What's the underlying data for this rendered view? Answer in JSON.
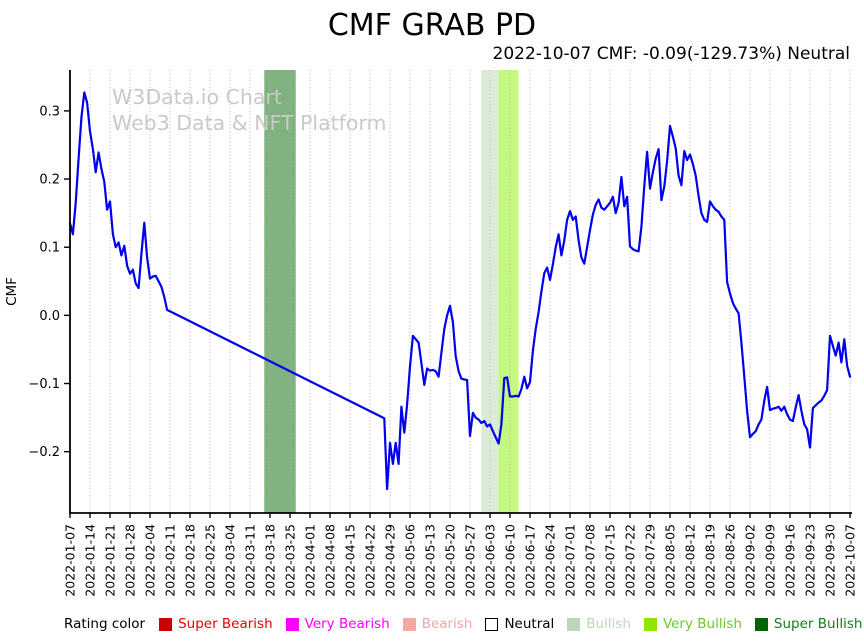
{
  "header": {
    "title": "CMF GRAB PD",
    "subtitle": "2022-10-07 CMF: -0.09(-129.73%) Neutral"
  },
  "watermark": {
    "line1": "W3Data.io Chart",
    "line2": "Web3 Data & NFT Platform",
    "color": "#c9c9c9"
  },
  "legend": {
    "title": "Rating color",
    "items": [
      {
        "label": "Super Bearish",
        "swatch": "#cc0000",
        "text": "#e60000",
        "border": "#cc0000"
      },
      {
        "label": "Very Bearish",
        "swatch": "#ff00ff",
        "text": "#ff00ff",
        "border": "#ff00ff"
      },
      {
        "label": "Bearish",
        "swatch": "#f4a7a3",
        "text": "#f4a7a3",
        "border": "#f4a7a3"
      },
      {
        "label": "Neutral",
        "swatch": "#ffffff",
        "text": "#000000",
        "border": "#000000"
      },
      {
        "label": "Bullish",
        "swatch": "#bcd6bc",
        "text": "#bcd6bc",
        "border": "#bcd6bc"
      },
      {
        "label": "Very Bullish",
        "swatch": "#8ce600",
        "text": "#6cc832",
        "border": "#8ce600"
      },
      {
        "label": "Super Bullish",
        "swatch": "#006400",
        "text": "#1a7a1a",
        "border": "#006400"
      }
    ]
  },
  "chart_data": {
    "type": "line",
    "title": "CMF GRAB PD",
    "subtitle": "2022-10-07 CMF: -0.09(-129.73%) Neutral",
    "xlabel": "",
    "ylabel": "CMF",
    "grid": "vertical-dotted",
    "grid_color": "#b3b3b3",
    "axis_color": "#000000",
    "line_color": "#0000ee",
    "line_width": 2.2,
    "x_start_date": "2022-01-07",
    "x_end_date": "2022-10-07",
    "x_range_days": 273,
    "x_unit": "days since 2022-01-07",
    "ylim": [
      -0.29,
      0.36
    ],
    "yticks": [
      {
        "label": "0.3",
        "value": 0.3
      },
      {
        "label": "0.2",
        "value": 0.2
      },
      {
        "label": "0.1",
        "value": 0.1
      },
      {
        "label": "0.0",
        "value": 0.0
      },
      {
        "label": "−0.1",
        "value": -0.1
      },
      {
        "label": "−0.2",
        "value": -0.2
      }
    ],
    "xtick_dates": [
      "2022-01-07",
      "2022-01-14",
      "2022-01-21",
      "2022-01-28",
      "2022-02-04",
      "2022-02-11",
      "2022-02-18",
      "2022-02-25",
      "2022-03-04",
      "2022-03-11",
      "2022-03-18",
      "2022-03-25",
      "2022-04-01",
      "2022-04-08",
      "2022-04-15",
      "2022-04-22",
      "2022-04-29",
      "2022-05-06",
      "2022-05-13",
      "2022-05-20",
      "2022-05-27",
      "2022-06-03",
      "2022-06-10",
      "2022-06-17",
      "2022-06-24",
      "2022-07-01",
      "2022-07-08",
      "2022-07-15",
      "2022-07-22",
      "2022-07-29",
      "2022-08-05",
      "2022-08-12",
      "2022-08-19",
      "2022-08-26",
      "2022-09-02",
      "2022-09-09",
      "2022-09-16",
      "2022-09-23",
      "2022-09-30",
      "2022-10-07"
    ],
    "bands": [
      {
        "label": "Super Bullish",
        "start": "2022-03-16",
        "end": "2022-03-27",
        "fill": "#80b280"
      },
      {
        "label": "Bullish",
        "start": "2022-05-31",
        "end": "2022-06-06",
        "fill": "#dcead8"
      },
      {
        "label": "Very Bullish",
        "start": "2022-06-06",
        "end": "2022-06-13",
        "fill": "#c4f87e"
      }
    ],
    "gap_note": "straight segment = interpolated gap between day 34 (2022-02-10) and day 110 (2022-04-27)",
    "series": [
      {
        "name": "CMF",
        "points": [
          [
            0,
            0.135
          ],
          [
            1,
            0.119
          ],
          [
            2,
            0.165
          ],
          [
            3,
            0.23
          ],
          [
            4,
            0.29
          ],
          [
            5,
            0.327
          ],
          [
            6,
            0.312
          ],
          [
            7,
            0.27
          ],
          [
            8,
            0.244
          ],
          [
            9,
            0.21
          ],
          [
            10,
            0.239
          ],
          [
            11,
            0.215
          ],
          [
            12,
            0.196
          ],
          [
            13,
            0.155
          ],
          [
            14,
            0.167
          ],
          [
            15,
            0.119
          ],
          [
            16,
            0.1
          ],
          [
            17,
            0.107
          ],
          [
            18,
            0.088
          ],
          [
            19,
            0.102
          ],
          [
            20,
            0.073
          ],
          [
            21,
            0.061
          ],
          [
            22,
            0.067
          ],
          [
            23,
            0.047
          ],
          [
            24,
            0.04
          ],
          [
            25,
            0.09
          ],
          [
            26,
            0.136
          ],
          [
            27,
            0.085
          ],
          [
            28,
            0.054
          ],
          [
            29,
            0.057
          ],
          [
            30,
            0.058
          ],
          [
            31,
            0.05
          ],
          [
            32,
            0.042
          ],
          [
            33,
            0.027
          ],
          [
            34,
            0.008
          ],
          [
            110,
            -0.151
          ],
          [
            111,
            -0.255
          ],
          [
            112,
            -0.187
          ],
          [
            113,
            -0.218
          ],
          [
            114,
            -0.187
          ],
          [
            115,
            -0.218
          ],
          [
            116,
            -0.134
          ],
          [
            117,
            -0.172
          ],
          [
            118,
            -0.131
          ],
          [
            119,
            -0.075
          ],
          [
            120,
            -0.03
          ],
          [
            121,
            -0.035
          ],
          [
            122,
            -0.04
          ],
          [
            123,
            -0.07
          ],
          [
            124,
            -0.102
          ],
          [
            125,
            -0.078
          ],
          [
            126,
            -0.081
          ],
          [
            127,
            -0.08
          ],
          [
            128,
            -0.082
          ],
          [
            129,
            -0.09
          ],
          [
            130,
            -0.055
          ],
          [
            131,
            -0.02
          ],
          [
            132,
            0.0
          ],
          [
            133,
            0.014
          ],
          [
            134,
            -0.01
          ],
          [
            135,
            -0.06
          ],
          [
            136,
            -0.082
          ],
          [
            137,
            -0.093
          ],
          [
            138,
            -0.094
          ],
          [
            139,
            -0.095
          ],
          [
            140,
            -0.177
          ],
          [
            141,
            -0.143
          ],
          [
            142,
            -0.15
          ],
          [
            143,
            -0.153
          ],
          [
            144,
            -0.158
          ],
          [
            145,
            -0.155
          ],
          [
            146,
            -0.163
          ],
          [
            147,
            -0.16
          ],
          [
            148,
            -0.17
          ],
          [
            149,
            -0.179
          ],
          [
            150,
            -0.188
          ],
          [
            151,
            -0.16
          ],
          [
            152,
            -0.092
          ],
          [
            153,
            -0.091
          ],
          [
            154,
            -0.119
          ],
          [
            155,
            -0.119
          ],
          [
            156,
            -0.118
          ],
          [
            157,
            -0.119
          ],
          [
            158,
            -0.108
          ],
          [
            159,
            -0.09
          ],
          [
            160,
            -0.107
          ],
          [
            161,
            -0.098
          ],
          [
            162,
            -0.052
          ],
          [
            163,
            -0.02
          ],
          [
            164,
            0.005
          ],
          [
            165,
            0.035
          ],
          [
            166,
            0.062
          ],
          [
            167,
            0.07
          ],
          [
            168,
            0.052
          ],
          [
            169,
            0.075
          ],
          [
            170,
            0.1
          ],
          [
            171,
            0.119
          ],
          [
            172,
            0.088
          ],
          [
            173,
            0.11
          ],
          [
            174,
            0.14
          ],
          [
            175,
            0.153
          ],
          [
            176,
            0.14
          ],
          [
            177,
            0.145
          ],
          [
            178,
            0.11
          ],
          [
            179,
            0.085
          ],
          [
            180,
            0.076
          ],
          [
            181,
            0.1
          ],
          [
            182,
            0.125
          ],
          [
            183,
            0.148
          ],
          [
            184,
            0.162
          ],
          [
            185,
            0.17
          ],
          [
            186,
            0.158
          ],
          [
            187,
            0.155
          ],
          [
            188,
            0.16
          ],
          [
            189,
            0.165
          ],
          [
            190,
            0.174
          ],
          [
            191,
            0.15
          ],
          [
            192,
            0.165
          ],
          [
            193,
            0.203
          ],
          [
            194,
            0.16
          ],
          [
            195,
            0.174
          ],
          [
            196,
            0.101
          ],
          [
            197,
            0.097
          ],
          [
            198,
            0.095
          ],
          [
            199,
            0.094
          ],
          [
            200,
            0.13
          ],
          [
            201,
            0.19
          ],
          [
            202,
            0.24
          ],
          [
            203,
            0.186
          ],
          [
            204,
            0.21
          ],
          [
            205,
            0.23
          ],
          [
            206,
            0.244
          ],
          [
            207,
            0.169
          ],
          [
            208,
            0.189
          ],
          [
            209,
            0.226
          ],
          [
            210,
            0.278
          ],
          [
            211,
            0.262
          ],
          [
            212,
            0.245
          ],
          [
            213,
            0.205
          ],
          [
            214,
            0.191
          ],
          [
            215,
            0.241
          ],
          [
            216,
            0.228
          ],
          [
            217,
            0.236
          ],
          [
            218,
            0.222
          ],
          [
            219,
            0.205
          ],
          [
            220,
            0.175
          ],
          [
            221,
            0.15
          ],
          [
            222,
            0.14
          ],
          [
            223,
            0.137
          ],
          [
            224,
            0.167
          ],
          [
            225,
            0.16
          ],
          [
            226,
            0.155
          ],
          [
            227,
            0.152
          ],
          [
            228,
            0.145
          ],
          [
            229,
            0.14
          ],
          [
            230,
            0.049
          ],
          [
            231,
            0.032
          ],
          [
            232,
            0.018
          ],
          [
            233,
            0.01
          ],
          [
            234,
            0.003
          ],
          [
            235,
            -0.04
          ],
          [
            236,
            -0.09
          ],
          [
            237,
            -0.14
          ],
          [
            238,
            -0.179
          ],
          [
            239,
            -0.174
          ],
          [
            240,
            -0.17
          ],
          [
            241,
            -0.16
          ],
          [
            242,
            -0.153
          ],
          [
            243,
            -0.125
          ],
          [
            244,
            -0.105
          ],
          [
            245,
            -0.139
          ],
          [
            246,
            -0.137
          ],
          [
            247,
            -0.136
          ],
          [
            248,
            -0.134
          ],
          [
            249,
            -0.14
          ],
          [
            250,
            -0.134
          ],
          [
            251,
            -0.145
          ],
          [
            252,
            -0.153
          ],
          [
            253,
            -0.155
          ],
          [
            254,
            -0.135
          ],
          [
            255,
            -0.117
          ],
          [
            256,
            -0.14
          ],
          [
            257,
            -0.16
          ],
          [
            258,
            -0.167
          ],
          [
            259,
            -0.194
          ],
          [
            260,
            -0.136
          ],
          [
            261,
            -0.132
          ],
          [
            262,
            -0.128
          ],
          [
            263,
            -0.125
          ],
          [
            264,
            -0.118
          ],
          [
            265,
            -0.11
          ],
          [
            266,
            -0.03
          ],
          [
            267,
            -0.045
          ],
          [
            268,
            -0.059
          ],
          [
            269,
            -0.04
          ],
          [
            270,
            -0.069
          ],
          [
            271,
            -0.035
          ],
          [
            272,
            -0.074
          ],
          [
            273,
            -0.09
          ]
        ]
      }
    ]
  }
}
